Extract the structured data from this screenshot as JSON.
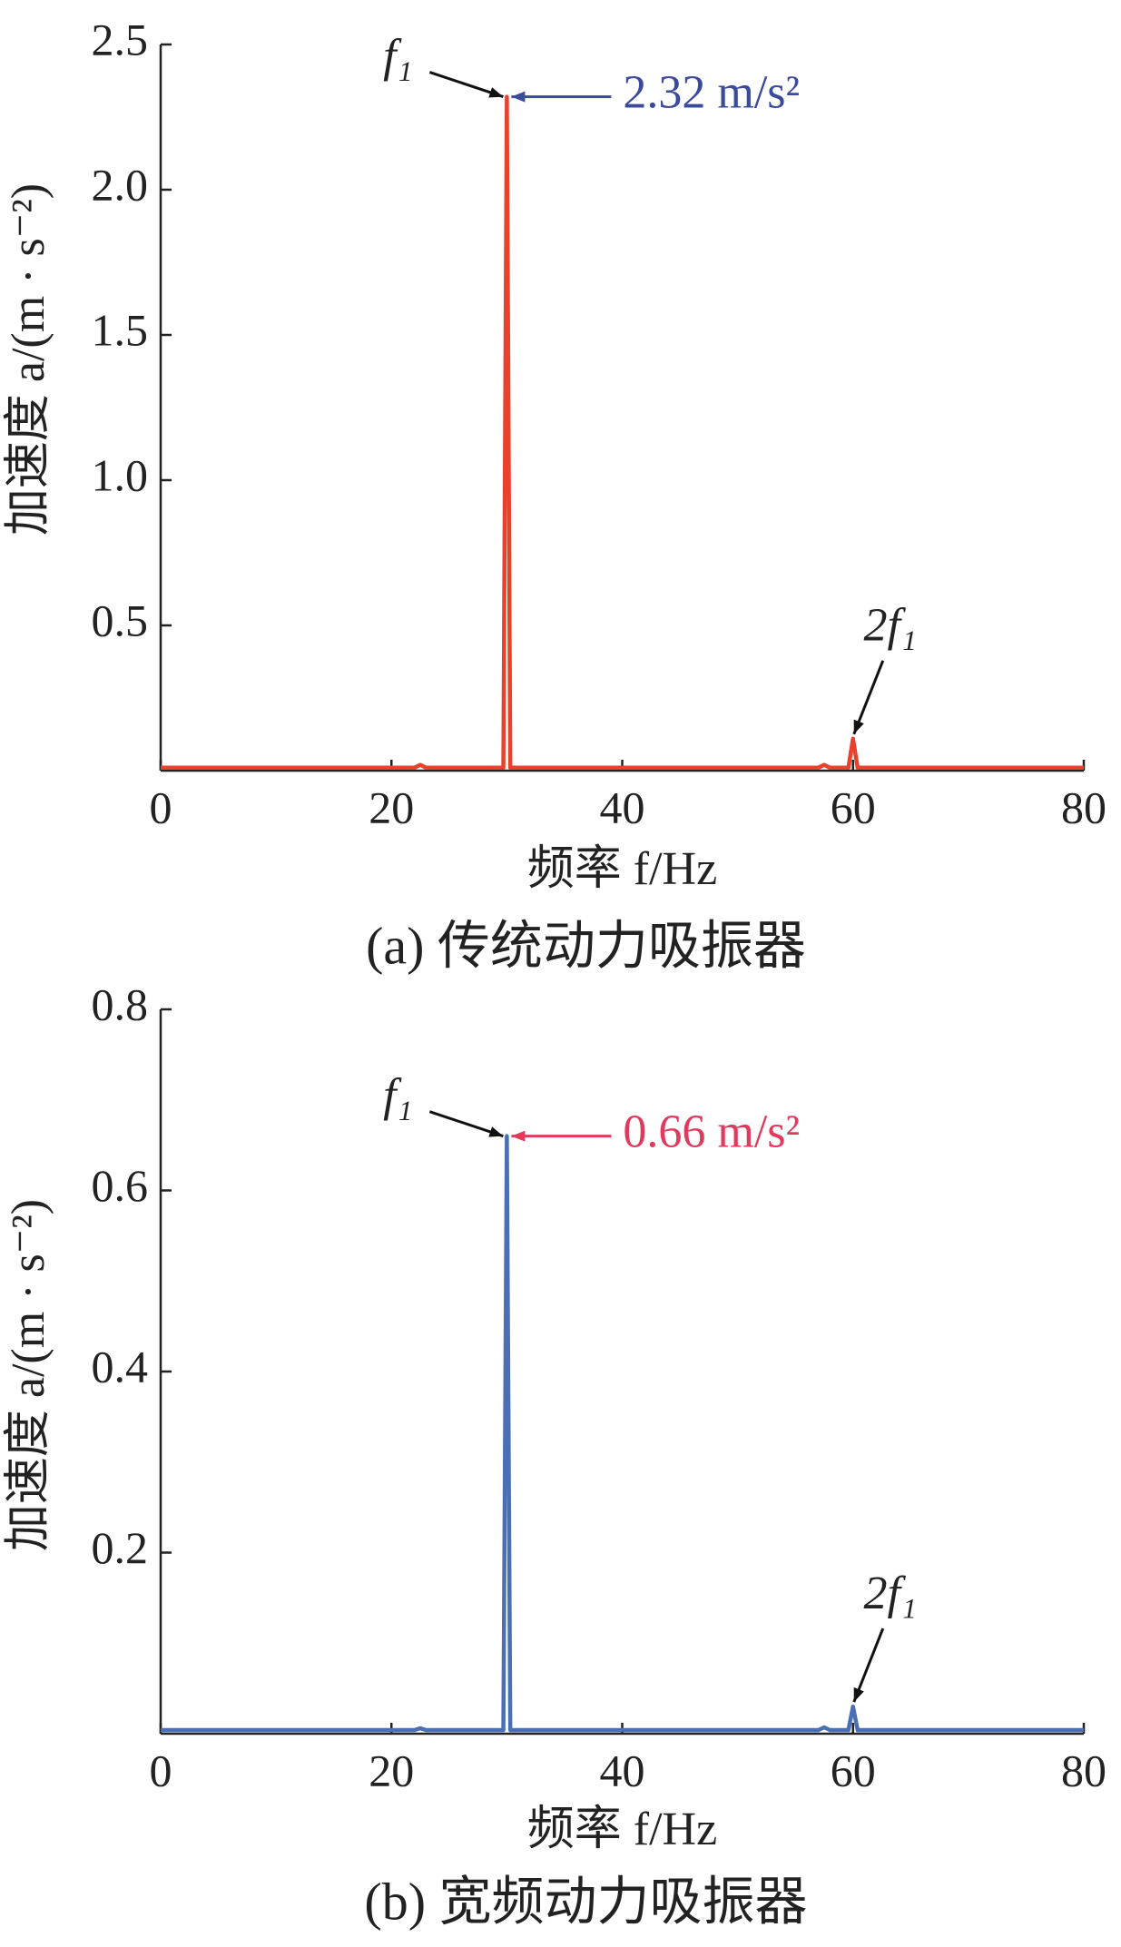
{
  "chart_data": [
    {
      "type": "line",
      "x_label": "频率 f/Hz",
      "y_label": "加速度 a/(m · s⁻²)",
      "caption": "(a) 传统动力吸振器",
      "xlim": [
        0,
        80
      ],
      "xticks": [
        0,
        20,
        40,
        60,
        80
      ],
      "ylim": [
        0,
        2.5
      ],
      "yticks": [
        0.5,
        {
          "value": 1,
          "label": "1.0"
        },
        1.5,
        {
          "value": 2,
          "label": "2.0"
        },
        2.5
      ],
      "x": [
        0,
        10,
        22,
        22.5,
        23,
        29.7,
        30,
        30.3,
        40,
        57,
        57.5,
        58,
        59.6,
        60,
        60.4,
        70,
        80
      ],
      "series": [
        {
          "color": "#e8412c",
          "values": [
            0.01,
            0.01,
            0.01,
            0.02,
            0.01,
            0.01,
            2.32,
            0.01,
            0.01,
            0.01,
            0.02,
            0.01,
            0.01,
            0.11,
            0.01,
            0.01,
            0.01
          ]
        }
      ],
      "peak_name": "f₁",
      "peak_label": "2.32 m/s²",
      "peak_label_color": "#3b4a9a",
      "harmonic_name": "2f₁"
    },
    {
      "type": "line",
      "x_label": "频率 f/Hz",
      "y_label": "加速度 a/(m · s⁻²)",
      "caption": "(b) 宽频动力吸振器",
      "xlim": [
        0,
        80
      ],
      "xticks": [
        0,
        20,
        40,
        60,
        80
      ],
      "ylim": [
        0,
        0.8
      ],
      "yticks": [
        0.2,
        0.4,
        0.6,
        0.8
      ],
      "x": [
        0,
        10,
        22,
        22.5,
        23,
        29.7,
        30,
        30.3,
        40,
        57,
        57.5,
        58,
        59.6,
        60,
        60.4,
        70,
        80
      ],
      "series": [
        {
          "color": "#4a6fb5",
          "values": [
            0.004,
            0.004,
            0.004,
            0.006,
            0.004,
            0.004,
            0.66,
            0.004,
            0.004,
            0.004,
            0.007,
            0.004,
            0.004,
            0.03,
            0.004,
            0.004,
            0.004
          ]
        }
      ],
      "peak_name": "f₁",
      "peak_label": "0.66 m/s²",
      "peak_label_color": "#e03a5c",
      "harmonic_name": "2f₁"
    }
  ]
}
